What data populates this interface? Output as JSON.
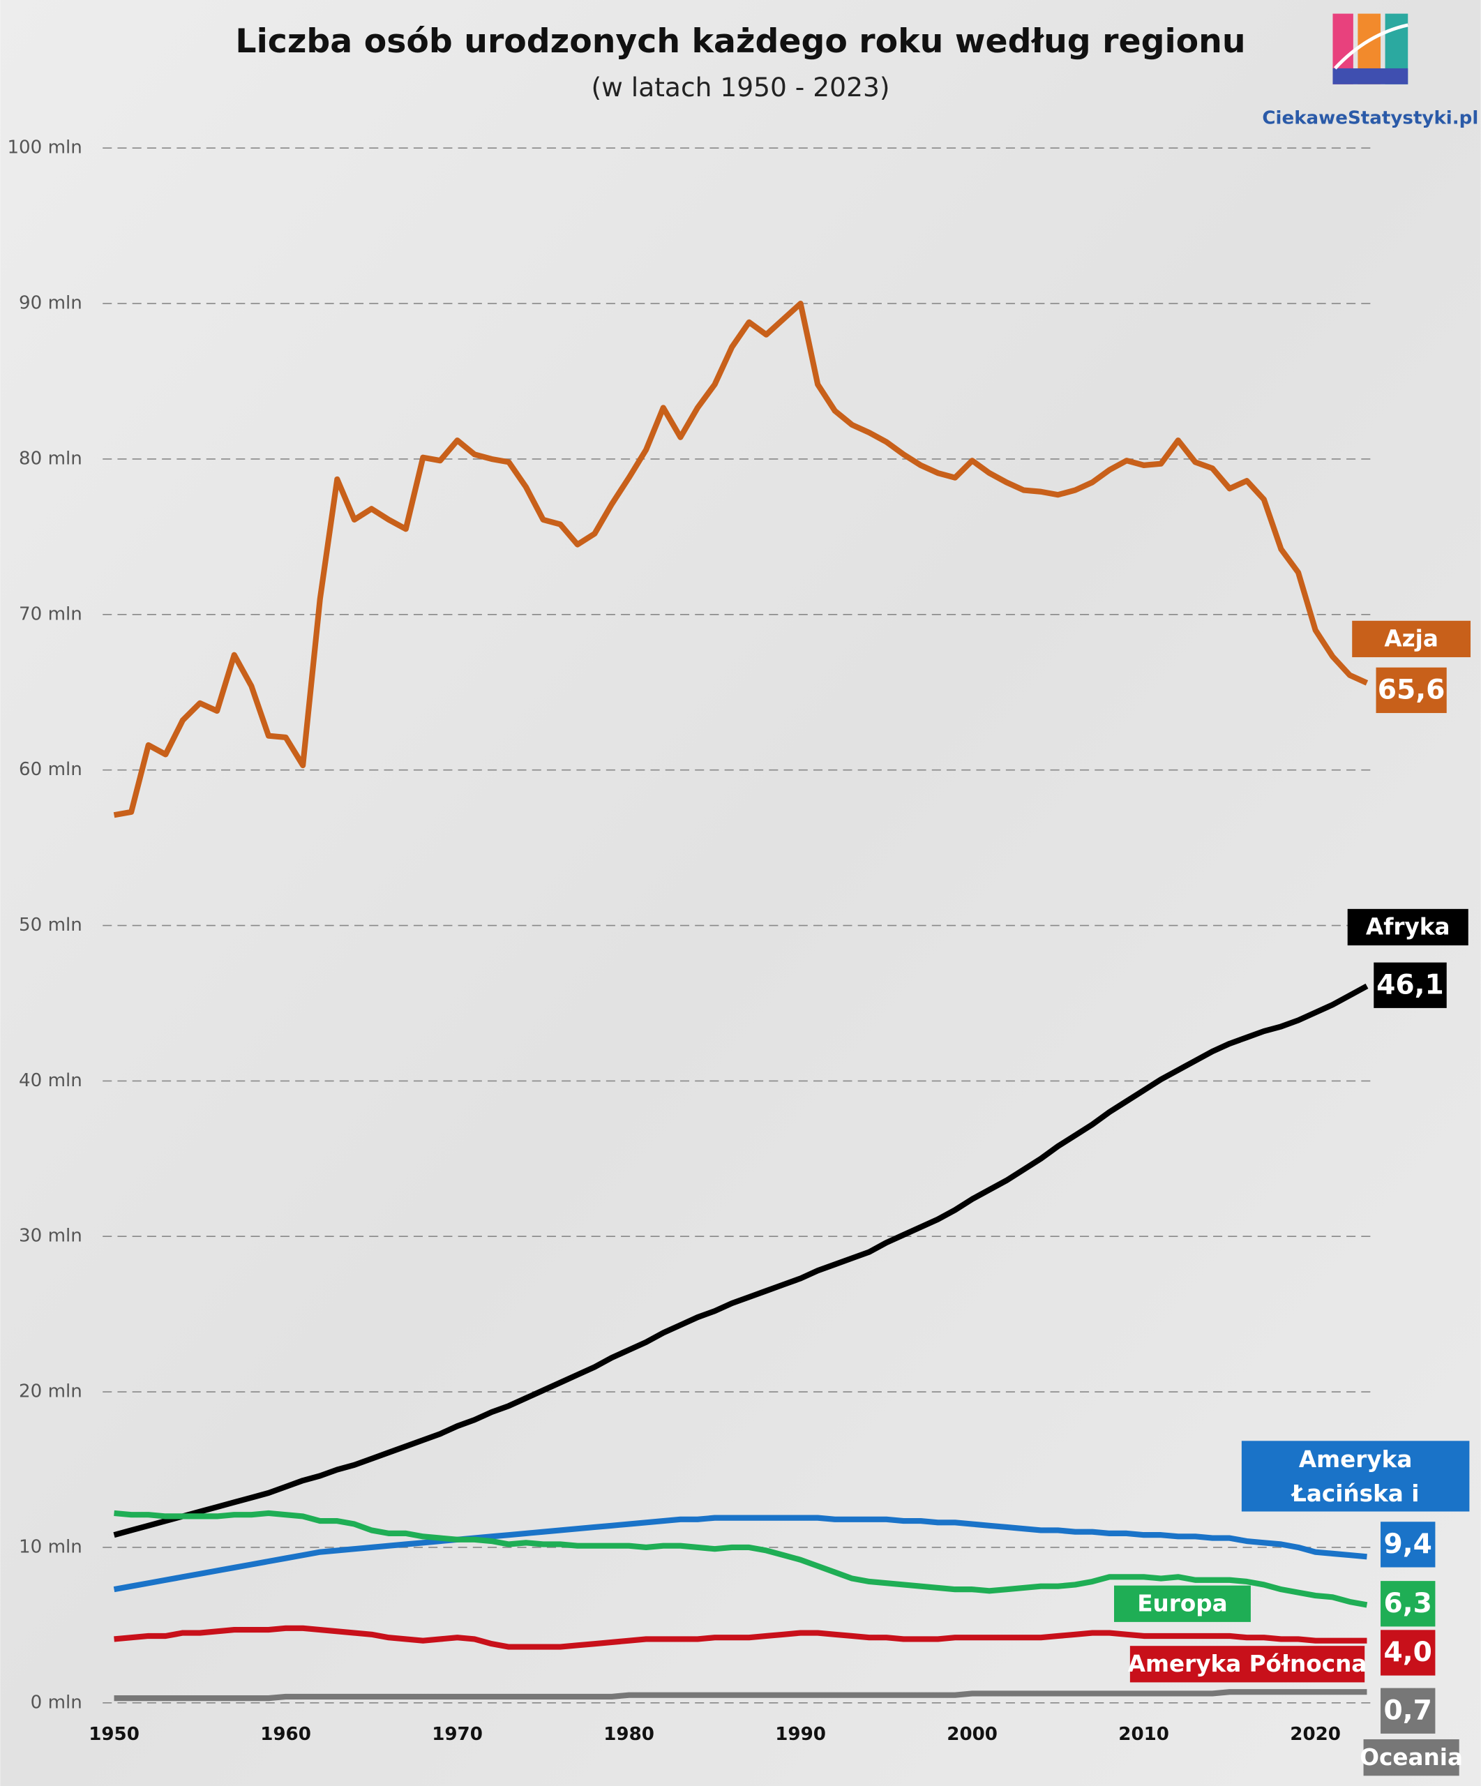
{
  "chart_data": {
    "type": "line",
    "title": "Liczba osób urodzonych każdego roku według regionu",
    "subtitle": "(w latach 1950 - 2023)",
    "source": "CiekaweStatystyki.pl",
    "x": [
      1950,
      1951,
      1952,
      1953,
      1954,
      1955,
      1956,
      1957,
      1958,
      1959,
      1960,
      1961,
      1962,
      1963,
      1964,
      1965,
      1966,
      1967,
      1968,
      1969,
      1970,
      1971,
      1972,
      1973,
      1974,
      1975,
      1976,
      1977,
      1978,
      1979,
      1980,
      1981,
      1982,
      1983,
      1984,
      1985,
      1986,
      1987,
      1988,
      1989,
      1990,
      1991,
      1992,
      1993,
      1994,
      1995,
      1996,
      1997,
      1998,
      1999,
      2000,
      2001,
      2002,
      2003,
      2004,
      2005,
      2006,
      2007,
      2008,
      2009,
      2010,
      2011,
      2012,
      2013,
      2014,
      2015,
      2016,
      2017,
      2018,
      2019,
      2020,
      2021,
      2022,
      2023
    ],
    "xlim": [
      1950,
      2023
    ],
    "xticks": [
      1950,
      1960,
      1970,
      1980,
      1990,
      2000,
      2010,
      2020
    ],
    "ylim": [
      0,
      100
    ],
    "yticks": [
      {
        "value": 0,
        "label": "0 mln"
      },
      {
        "value": 10,
        "label": "10 mln"
      },
      {
        "value": 20,
        "label": "20 mln"
      },
      {
        "value": 30,
        "label": "30 mln"
      },
      {
        "value": 40,
        "label": "40 mln"
      },
      {
        "value": 50,
        "label": "50 mln"
      },
      {
        "value": 60,
        "label": "60 mln"
      },
      {
        "value": 70,
        "label": "70 mln"
      },
      {
        "value": 80,
        "label": "80 mln"
      },
      {
        "value": 90,
        "label": "90 mln"
      },
      {
        "value": 100,
        "label": "100 mln"
      }
    ],
    "grid": true,
    "series": [
      {
        "name": "Azja",
        "color": "#c8601a",
        "values": [
          57.1,
          57.3,
          61.6,
          61.0,
          63.2,
          64.3,
          63.8,
          67.4,
          65.4,
          62.2,
          62.1,
          60.3,
          71.0,
          78.7,
          76.1,
          76.8,
          76.1,
          75.5,
          80.1,
          79.9,
          81.2,
          80.3,
          80.0,
          79.8,
          78.2,
          76.1,
          75.8,
          74.5,
          75.2,
          77.1,
          78.8,
          80.6,
          83.3,
          81.4,
          83.3,
          84.8,
          87.2,
          88.8,
          88.0,
          89.0,
          90.0,
          84.8,
          83.1,
          82.2,
          81.7,
          81.1,
          80.3,
          79.6,
          79.1,
          78.8,
          79.9,
          79.1,
          78.5,
          78.0,
          77.9,
          77.7,
          78.0,
          78.5,
          79.3,
          79.9,
          79.6,
          79.7,
          81.2,
          79.8,
          79.4,
          78.1,
          78.6,
          77.4,
          74.2,
          72.7,
          69.0,
          67.3,
          66.1,
          65.6
        ],
        "end_label": "65,6"
      },
      {
        "name": "Afryka",
        "color": "#000000",
        "values": [
          10.8,
          11.1,
          11.4,
          11.7,
          12.0,
          12.3,
          12.6,
          12.9,
          13.2,
          13.5,
          13.9,
          14.3,
          14.6,
          15.0,
          15.3,
          15.7,
          16.1,
          16.5,
          16.9,
          17.3,
          17.8,
          18.2,
          18.7,
          19.1,
          19.6,
          20.1,
          20.6,
          21.1,
          21.6,
          22.2,
          22.7,
          23.2,
          23.8,
          24.3,
          24.8,
          25.2,
          25.7,
          26.1,
          26.5,
          26.9,
          27.3,
          27.8,
          28.2,
          28.6,
          29.0,
          29.6,
          30.1,
          30.6,
          31.1,
          31.7,
          32.4,
          33.0,
          33.6,
          34.3,
          35.0,
          35.8,
          36.5,
          37.2,
          38.0,
          38.7,
          39.4,
          40.1,
          40.7,
          41.3,
          41.9,
          42.4,
          42.8,
          43.2,
          43.5,
          43.9,
          44.4,
          44.9,
          45.5,
          46.1
        ],
        "end_label": "46,1"
      },
      {
        "name": "Ameryka Łacińska i Karaiby",
        "color": "#1a73c8",
        "values": [
          7.3,
          7.5,
          7.7,
          7.9,
          8.1,
          8.3,
          8.5,
          8.7,
          8.9,
          9.1,
          9.3,
          9.5,
          9.7,
          9.8,
          9.9,
          10.0,
          10.1,
          10.2,
          10.3,
          10.4,
          10.5,
          10.6,
          10.7,
          10.8,
          10.9,
          11.0,
          11.1,
          11.2,
          11.3,
          11.4,
          11.5,
          11.6,
          11.7,
          11.8,
          11.8,
          11.9,
          11.9,
          11.9,
          11.9,
          11.9,
          11.9,
          11.9,
          11.8,
          11.8,
          11.8,
          11.8,
          11.7,
          11.7,
          11.6,
          11.6,
          11.5,
          11.4,
          11.3,
          11.2,
          11.1,
          11.1,
          11.0,
          11.0,
          10.9,
          10.9,
          10.8,
          10.8,
          10.7,
          10.7,
          10.6,
          10.6,
          10.4,
          10.3,
          10.2,
          10.0,
          9.7,
          9.6,
          9.5,
          9.4
        ],
        "end_label": "9,4"
      },
      {
        "name": "Europa",
        "color": "#1fae55",
        "values": [
          12.2,
          12.1,
          12.1,
          12.0,
          12.0,
          12.0,
          12.0,
          12.1,
          12.1,
          12.2,
          12.1,
          12.0,
          11.7,
          11.7,
          11.5,
          11.1,
          10.9,
          10.9,
          10.7,
          10.6,
          10.5,
          10.5,
          10.4,
          10.2,
          10.3,
          10.2,
          10.2,
          10.1,
          10.1,
          10.1,
          10.1,
          10.0,
          10.1,
          10.1,
          10.0,
          9.9,
          10.0,
          10.0,
          9.8,
          9.5,
          9.2,
          8.8,
          8.4,
          8.0,
          7.8,
          7.7,
          7.6,
          7.5,
          7.4,
          7.3,
          7.3,
          7.2,
          7.3,
          7.4,
          7.5,
          7.5,
          7.6,
          7.8,
          8.1,
          8.1,
          8.1,
          8.0,
          8.1,
          7.9,
          7.9,
          7.9,
          7.8,
          7.6,
          7.3,
          7.1,
          6.9,
          6.8,
          6.5,
          6.3
        ],
        "end_label": "6,3"
      },
      {
        "name": "Ameryka Północna",
        "color": "#c8101a",
        "values": [
          4.1,
          4.2,
          4.3,
          4.3,
          4.5,
          4.5,
          4.6,
          4.7,
          4.7,
          4.7,
          4.8,
          4.8,
          4.7,
          4.6,
          4.5,
          4.4,
          4.2,
          4.1,
          4.0,
          4.1,
          4.2,
          4.1,
          3.8,
          3.6,
          3.6,
          3.6,
          3.6,
          3.7,
          3.8,
          3.9,
          4.0,
          4.1,
          4.1,
          4.1,
          4.1,
          4.2,
          4.2,
          4.2,
          4.3,
          4.4,
          4.5,
          4.5,
          4.4,
          4.3,
          4.2,
          4.2,
          4.1,
          4.1,
          4.1,
          4.2,
          4.2,
          4.2,
          4.2,
          4.2,
          4.2,
          4.3,
          4.4,
          4.5,
          4.5,
          4.4,
          4.3,
          4.3,
          4.3,
          4.3,
          4.3,
          4.3,
          4.2,
          4.2,
          4.1,
          4.1,
          4.0,
          4.0,
          4.0,
          4.0
        ],
        "end_label": "4,0"
      },
      {
        "name": "Oceania",
        "color": "#777777",
        "values": [
          0.3,
          0.3,
          0.3,
          0.3,
          0.3,
          0.3,
          0.3,
          0.3,
          0.3,
          0.3,
          0.4,
          0.4,
          0.4,
          0.4,
          0.4,
          0.4,
          0.4,
          0.4,
          0.4,
          0.4,
          0.4,
          0.4,
          0.4,
          0.4,
          0.4,
          0.4,
          0.4,
          0.4,
          0.4,
          0.4,
          0.5,
          0.5,
          0.5,
          0.5,
          0.5,
          0.5,
          0.5,
          0.5,
          0.5,
          0.5,
          0.5,
          0.5,
          0.5,
          0.5,
          0.5,
          0.5,
          0.5,
          0.5,
          0.5,
          0.5,
          0.6,
          0.6,
          0.6,
          0.6,
          0.6,
          0.6,
          0.6,
          0.6,
          0.6,
          0.6,
          0.6,
          0.6,
          0.6,
          0.6,
          0.6,
          0.7,
          0.7,
          0.7,
          0.7,
          0.7,
          0.7,
          0.7,
          0.7,
          0.7
        ],
        "end_label": "0,7"
      }
    ]
  }
}
